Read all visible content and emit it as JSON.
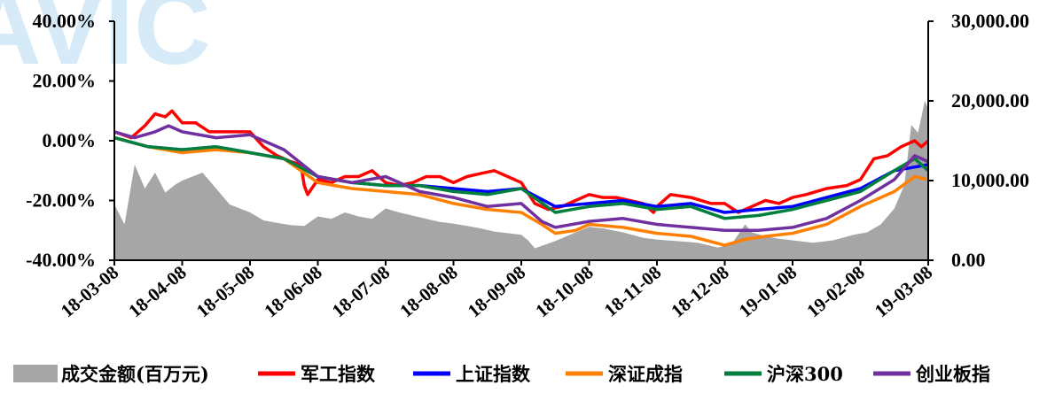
{
  "watermark": "AVIC",
  "chart_data": {
    "type": "line",
    "x_dates": [
      "18-03-08",
      "18-04-08",
      "18-05-08",
      "18-06-08",
      "18-07-08",
      "18-08-08",
      "18-09-08",
      "18-10-08",
      "18-11-08",
      "18-12-08",
      "19-01-08",
      "19-02-08",
      "19-03-08"
    ],
    "y_left": {
      "ticks": [
        "40.00%",
        "20.00%",
        "0.00%",
        "-20.00%",
        "-40.00%"
      ],
      "range": [
        -40,
        40
      ]
    },
    "y_right": {
      "ticks": [
        "30,000.00",
        "20,000.00",
        "10,000.00",
        "0.00"
      ],
      "range": [
        0,
        30000
      ]
    },
    "grid": false,
    "legend_position": "bottom",
    "series": [
      {
        "name": "军工指数",
        "color": "#ff0000",
        "axis": "left",
        "points": [
          [
            0,
            3
          ],
          [
            0.25,
            1
          ],
          [
            0.45,
            5
          ],
          [
            0.6,
            9
          ],
          [
            0.75,
            8
          ],
          [
            0.85,
            10
          ],
          [
            1,
            6
          ],
          [
            1.2,
            6
          ],
          [
            1.4,
            3
          ],
          [
            1.6,
            3
          ],
          [
            1.8,
            3
          ],
          [
            2,
            3
          ],
          [
            2.2,
            -2
          ],
          [
            2.4,
            -5
          ],
          [
            2.6,
            -7
          ],
          [
            2.75,
            -8
          ],
          [
            2.8,
            -15
          ],
          [
            2.85,
            -18
          ],
          [
            3,
            -13
          ],
          [
            3.2,
            -14
          ],
          [
            3.4,
            -12
          ],
          [
            3.6,
            -12
          ],
          [
            3.8,
            -10
          ],
          [
            4,
            -14
          ],
          [
            4.2,
            -15
          ],
          [
            4.4,
            -14
          ],
          [
            4.6,
            -12
          ],
          [
            4.8,
            -12
          ],
          [
            5,
            -14
          ],
          [
            5.2,
            -12
          ],
          [
            5.4,
            -11
          ],
          [
            5.6,
            -10
          ],
          [
            5.8,
            -12
          ],
          [
            6,
            -14
          ],
          [
            6.2,
            -21
          ],
          [
            6.4,
            -23
          ],
          [
            6.6,
            -22
          ],
          [
            6.8,
            -20
          ],
          [
            7,
            -18
          ],
          [
            7.2,
            -19
          ],
          [
            7.4,
            -19
          ],
          [
            7.6,
            -20
          ],
          [
            7.8,
            -21
          ],
          [
            7.95,
            -24
          ],
          [
            8,
            -22
          ],
          [
            8.2,
            -18
          ],
          [
            8.5,
            -19
          ],
          [
            8.8,
            -21
          ],
          [
            9,
            -21
          ],
          [
            9.2,
            -24
          ],
          [
            9.4,
            -22
          ],
          [
            9.6,
            -20
          ],
          [
            9.8,
            -21
          ],
          [
            10,
            -19
          ],
          [
            10.2,
            -18
          ],
          [
            10.5,
            -16
          ],
          [
            10.8,
            -15
          ],
          [
            11,
            -13
          ],
          [
            11.2,
            -6
          ],
          [
            11.4,
            -5
          ],
          [
            11.6,
            -2
          ],
          [
            11.8,
            0
          ],
          [
            11.9,
            -2
          ],
          [
            12,
            0
          ]
        ]
      },
      {
        "name": "上证指数",
        "color": "#0000ff",
        "axis": "left",
        "points": [
          [
            0,
            1
          ],
          [
            0.5,
            -2
          ],
          [
            1,
            -3
          ],
          [
            1.5,
            -2
          ],
          [
            2,
            -4
          ],
          [
            2.5,
            -6
          ],
          [
            3,
            -12
          ],
          [
            3.5,
            -14
          ],
          [
            4,
            -15
          ],
          [
            4.5,
            -15
          ],
          [
            5,
            -16
          ],
          [
            5.5,
            -17
          ],
          [
            6,
            -16
          ],
          [
            6.5,
            -22
          ],
          [
            7,
            -21
          ],
          [
            7.5,
            -20
          ],
          [
            8,
            -22
          ],
          [
            8.5,
            -21
          ],
          [
            9,
            -24
          ],
          [
            9.5,
            -23
          ],
          [
            10,
            -22
          ],
          [
            10.5,
            -19
          ],
          [
            11,
            -16
          ],
          [
            11.5,
            -10
          ],
          [
            12,
            -8
          ]
        ]
      },
      {
        "name": "深证成指",
        "color": "#ff8000",
        "axis": "left",
        "points": [
          [
            0,
            1
          ],
          [
            0.5,
            -2
          ],
          [
            1,
            -4
          ],
          [
            1.5,
            -3
          ],
          [
            2,
            -4
          ],
          [
            2.5,
            -6
          ],
          [
            3,
            -14
          ],
          [
            3.5,
            -16
          ],
          [
            4,
            -17
          ],
          [
            4.5,
            -18
          ],
          [
            5,
            -21
          ],
          [
            5.5,
            -23
          ],
          [
            6,
            -24
          ],
          [
            6.3,
            -28
          ],
          [
            6.5,
            -31
          ],
          [
            6.8,
            -30
          ],
          [
            7,
            -28
          ],
          [
            7.5,
            -29
          ],
          [
            8,
            -31
          ],
          [
            8.5,
            -32
          ],
          [
            9,
            -35
          ],
          [
            9.3,
            -33
          ],
          [
            9.6,
            -32
          ],
          [
            10,
            -31
          ],
          [
            10.5,
            -28
          ],
          [
            11,
            -22
          ],
          [
            11.5,
            -17
          ],
          [
            11.8,
            -12
          ],
          [
            12,
            -13
          ]
        ]
      },
      {
        "name": "沪深300",
        "color": "#00803c",
        "axis": "left",
        "points": [
          [
            0,
            1
          ],
          [
            0.5,
            -2
          ],
          [
            1,
            -3
          ],
          [
            1.5,
            -2
          ],
          [
            2,
            -4
          ],
          [
            2.5,
            -6
          ],
          [
            3,
            -12
          ],
          [
            3.5,
            -14
          ],
          [
            4,
            -15
          ],
          [
            4.5,
            -15
          ],
          [
            5,
            -17
          ],
          [
            5.5,
            -18
          ],
          [
            6,
            -16
          ],
          [
            6.5,
            -24
          ],
          [
            7,
            -22
          ],
          [
            7.5,
            -21
          ],
          [
            8,
            -23
          ],
          [
            8.5,
            -22
          ],
          [
            9,
            -26
          ],
          [
            9.5,
            -25
          ],
          [
            10,
            -23
          ],
          [
            10.5,
            -20
          ],
          [
            11,
            -17
          ],
          [
            11.5,
            -10
          ],
          [
            11.8,
            -6
          ],
          [
            12,
            -10
          ]
        ]
      },
      {
        "name": "创业板指",
        "color": "#7030a0",
        "axis": "left",
        "points": [
          [
            0,
            3
          ],
          [
            0.3,
            1
          ],
          [
            0.6,
            3
          ],
          [
            0.8,
            5
          ],
          [
            1,
            3
          ],
          [
            1.5,
            1
          ],
          [
            2,
            2
          ],
          [
            2.5,
            -3
          ],
          [
            3,
            -12
          ],
          [
            3.5,
            -14
          ],
          [
            4,
            -12
          ],
          [
            4.5,
            -17
          ],
          [
            5,
            -19
          ],
          [
            5.5,
            -22
          ],
          [
            6,
            -21
          ],
          [
            6.3,
            -27
          ],
          [
            6.5,
            -29
          ],
          [
            7,
            -27
          ],
          [
            7.5,
            -26
          ],
          [
            8,
            -28
          ],
          [
            8.5,
            -29
          ],
          [
            9,
            -30
          ],
          [
            9.5,
            -30
          ],
          [
            10,
            -29
          ],
          [
            10.5,
            -26
          ],
          [
            11,
            -20
          ],
          [
            11.5,
            -13
          ],
          [
            11.8,
            -5
          ],
          [
            12,
            -7
          ]
        ]
      }
    ],
    "area_series": {
      "name": "成交金额(百万元)",
      "color": "#a6a6a6",
      "axis": "right",
      "points": [
        [
          0,
          7000
        ],
        [
          0.15,
          4500
        ],
        [
          0.3,
          12000
        ],
        [
          0.45,
          9000
        ],
        [
          0.6,
          11000
        ],
        [
          0.75,
          8500
        ],
        [
          0.9,
          9500
        ],
        [
          1,
          10000
        ],
        [
          1.15,
          10500
        ],
        [
          1.3,
          11000
        ],
        [
          1.5,
          9000
        ],
        [
          1.7,
          7000
        ],
        [
          1.85,
          6500
        ],
        [
          2,
          6000
        ],
        [
          2.2,
          5000
        ],
        [
          2.4,
          4700
        ],
        [
          2.6,
          4400
        ],
        [
          2.8,
          4300
        ],
        [
          3,
          5500
        ],
        [
          3.2,
          5200
        ],
        [
          3.4,
          6000
        ],
        [
          3.6,
          5500
        ],
        [
          3.8,
          5200
        ],
        [
          4,
          6500
        ],
        [
          4.2,
          6000
        ],
        [
          4.4,
          5600
        ],
        [
          4.6,
          5200
        ],
        [
          4.8,
          4800
        ],
        [
          5,
          4600
        ],
        [
          5.2,
          4300
        ],
        [
          5.4,
          4000
        ],
        [
          5.6,
          3600
        ],
        [
          5.8,
          3400
        ],
        [
          6,
          3200
        ],
        [
          6.1,
          2500
        ],
        [
          6.2,
          1500
        ],
        [
          6.5,
          2400
        ],
        [
          6.8,
          3500
        ],
        [
          7,
          4200
        ],
        [
          7.2,
          4000
        ],
        [
          7.5,
          3500
        ],
        [
          7.8,
          2800
        ],
        [
          8,
          2600
        ],
        [
          8.3,
          2400
        ],
        [
          8.6,
          2200
        ],
        [
          8.9,
          1600
        ],
        [
          9.1,
          2000
        ],
        [
          9.3,
          4500
        ],
        [
          9.4,
          3500
        ],
        [
          9.6,
          3000
        ],
        [
          9.8,
          2700
        ],
        [
          10,
          2500
        ],
        [
          10.3,
          2200
        ],
        [
          10.6,
          2500
        ],
        [
          10.9,
          3200
        ],
        [
          11.1,
          3500
        ],
        [
          11.3,
          4500
        ],
        [
          11.5,
          6500
        ],
        [
          11.65,
          9500
        ],
        [
          11.75,
          17000
        ],
        [
          11.85,
          16000
        ],
        [
          11.95,
          20000
        ],
        [
          12,
          19000
        ]
      ]
    }
  },
  "legend": [
    {
      "label": "成交金额(百万元)",
      "color": "#a6a6a6",
      "kind": "box"
    },
    {
      "label": "军工指数",
      "color": "#ff0000",
      "kind": "line"
    },
    {
      "label": "上证指数",
      "color": "#0000ff",
      "kind": "line"
    },
    {
      "label": "深证成指",
      "color": "#ff8000",
      "kind": "line"
    },
    {
      "label": "沪深300",
      "color": "#00803c",
      "kind": "line"
    },
    {
      "label": "创业板指",
      "color": "#7030a0",
      "kind": "line"
    }
  ]
}
